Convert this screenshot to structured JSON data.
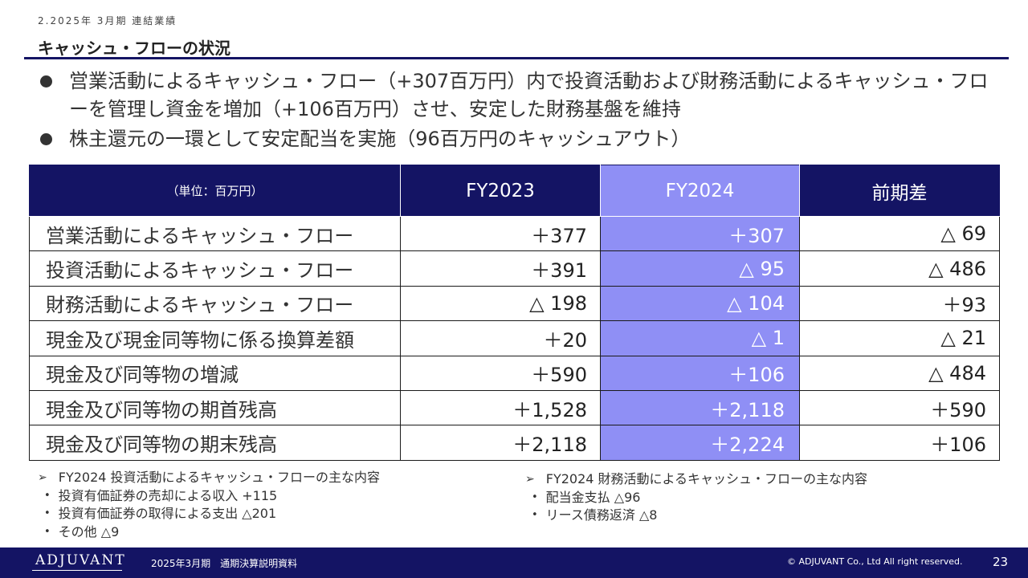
{
  "header": {
    "section": "2.2025年 3月期 連結業績",
    "title": "キャッシュ・フローの状況"
  },
  "bullets": [
    "営業活動によるキャッシュ・フロー（+307百万円）内で投資活動および財務活動によるキャッシュ・フローを管理し資金を増加（+106百万円）させ、安定した財務基盤を維持",
    "株主還元の一環として安定配当を実施（96百万円のキャッシュアウト）"
  ],
  "table": {
    "unit_label": "（単位：百万円）",
    "columns": [
      "FY2023",
      "FY2024",
      "前期差"
    ],
    "highlight_color": "#8f8ff5",
    "header_color": "#141464",
    "rows": [
      {
        "label": "営業活動によるキャッシュ・フロー",
        "fy2023": "＋377",
        "fy2024": "＋307",
        "diff": "△ 69"
      },
      {
        "label": "投資活動によるキャッシュ・フロー",
        "fy2023": "＋391",
        "fy2024": "△ 95",
        "diff": "△ 486"
      },
      {
        "label": "財務活動によるキャッシュ・フロー",
        "fy2023": "△ 198",
        "fy2024": "△ 104",
        "diff": "＋93"
      },
      {
        "label": "現金及び現金同等物に係る換算差額",
        "fy2023": "＋20",
        "fy2024": "△ 1",
        "diff": "△ 21"
      },
      {
        "label": "現金及び同等物の増減",
        "fy2023": "＋590",
        "fy2024": "＋106",
        "diff": "△ 484"
      },
      {
        "label": "現金及び同等物の期首残高",
        "fy2023": "＋1,528",
        "fy2024": "＋2,118",
        "diff": "＋590"
      },
      {
        "label": "現金及び同等物の期末残高",
        "fy2023": "＋2,118",
        "fy2024": "＋2,224",
        "diff": "＋106"
      }
    ]
  },
  "notes": {
    "left": {
      "title": "FY2024 投資活動によるキャッシュ・フローの主な内容",
      "items": [
        "投資有価証券の売却による収入 +115",
        "投資有価証券の取得による支出 △201",
        "その他 △9"
      ]
    },
    "right": {
      "title": "FY2024 財務活動によるキャッシュ・フローの主な内容",
      "items": [
        "配当金支払 △96",
        "リース債務返済 △8"
      ]
    }
  },
  "footer": {
    "logo": "ADJUVANT",
    "document": "2025年3月期　通期決算説明資料",
    "copyright": "© ADJUVANT Co., Ltd All right reserved.",
    "page": "23"
  }
}
